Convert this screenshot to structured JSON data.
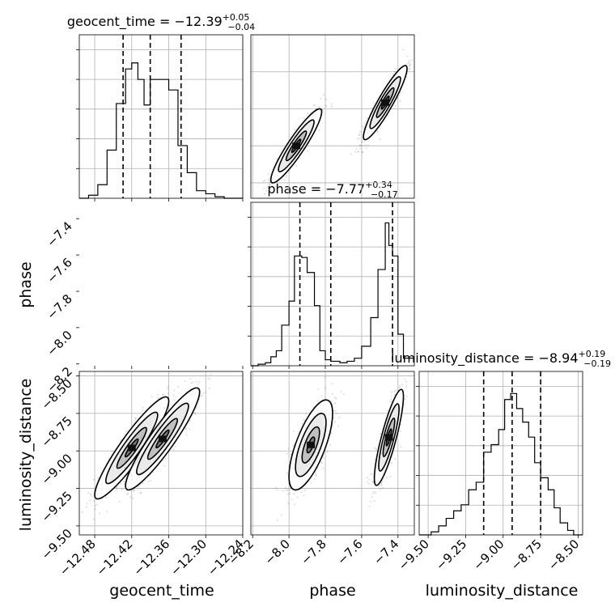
{
  "chart_data": {
    "type": "corner",
    "parameters": [
      "geocent_time",
      "phase",
      "luminosity_distance"
    ],
    "axis_labels": [
      "geocent_time",
      "phase",
      "luminosity_distance"
    ],
    "titles": [
      {
        "name": "geocent_time",
        "median": "−12.39",
        "plus": "+0.05",
        "minus": "−0.04"
      },
      {
        "name": "phase",
        "median": "−7.77",
        "plus": "+0.34",
        "minus": "−0.17"
      },
      {
        "name": "luminosity_distance",
        "median": "−8.94",
        "plus": "+0.19",
        "minus": "−0.19"
      }
    ],
    "ranges": [
      [
        -12.505,
        -12.24
      ],
      [
        -8.21,
        -7.31
      ],
      [
        -9.56,
        -8.47
      ]
    ],
    "ticks": [
      {
        "values": [
          -12.48,
          -12.42,
          -12.36,
          -12.3,
          -12.24
        ],
        "labels": [
          "−12.48",
          "−12.42",
          "−12.36",
          "−12.30",
          "−12.24"
        ]
      },
      {
        "values": [
          -8.2,
          -8.0,
          -7.8,
          -7.6,
          -7.4
        ],
        "labels": [
          "−8.2",
          "−8.0",
          "−7.8",
          "−7.6",
          "−7.4"
        ]
      },
      {
        "values": [
          -9.5,
          -9.25,
          -9.0,
          -8.75,
          -8.5
        ],
        "labels": [
          "−9.50",
          "−9.25",
          "−9.00",
          "−8.75",
          "−8.50"
        ]
      }
    ],
    "quantiles": [
      [
        -12.434,
        -12.39,
        -12.34
      ],
      [
        -7.94,
        -7.77,
        -7.43
      ],
      [
        -9.13,
        -8.94,
        -8.75
      ]
    ],
    "histograms": [
      {
        "bin_edges": [
          -12.505,
          -12.49,
          -12.475,
          -12.46,
          -12.445,
          -12.43,
          -12.42,
          -12.41,
          -12.4,
          -12.39,
          -12.375,
          -12.36,
          -12.345,
          -12.33,
          -12.315,
          -12.3,
          -12.285,
          -12.27,
          -12.24
        ],
        "counts": [
          0.0,
          0.02,
          0.09,
          0.32,
          0.63,
          0.86,
          0.9,
          0.79,
          0.62,
          0.79,
          0.79,
          0.72,
          0.35,
          0.17,
          0.05,
          0.03,
          0.01,
          0.0
        ]
      },
      {
        "bin_edges": [
          -8.21,
          -8.17,
          -8.13,
          -8.1,
          -8.07,
          -8.04,
          -8.0,
          -7.97,
          -7.93,
          -7.9,
          -7.86,
          -7.83,
          -7.8,
          -7.77,
          -7.72,
          -7.68,
          -7.64,
          -7.6,
          -7.55,
          -7.51,
          -7.47,
          -7.45,
          -7.43,
          -7.4,
          -7.37,
          -7.31
        ],
        "counts": [
          0.0,
          0.01,
          0.02,
          0.06,
          0.1,
          0.27,
          0.43,
          0.73,
          0.72,
          0.62,
          0.4,
          0.1,
          0.04,
          0.03,
          0.02,
          0.03,
          0.05,
          0.13,
          0.32,
          0.64,
          0.95,
          0.8,
          0.73,
          0.21,
          0.05
        ]
      },
      {
        "bin_edges": [
          -9.56,
          -9.48,
          -9.43,
          -9.38,
          -9.33,
          -9.28,
          -9.23,
          -9.18,
          -9.13,
          -9.08,
          -9.03,
          -8.99,
          -8.95,
          -8.91,
          -8.87,
          -8.83,
          -8.79,
          -8.75,
          -8.7,
          -8.66,
          -8.62,
          -8.57,
          -8.53,
          -8.47
        ],
        "counts": [
          0.0,
          0.02,
          0.06,
          0.11,
          0.16,
          0.2,
          0.3,
          0.35,
          0.55,
          0.6,
          0.7,
          0.9,
          0.94,
          0.84,
          0.75,
          0.65,
          0.48,
          0.38,
          0.3,
          0.18,
          0.08,
          0.03,
          0.0
        ]
      }
    ],
    "scatter_clusters": [
      {
        "x": 1,
        "y": 0,
        "modes": [
          {
            "mx": -7.96,
            "my": -12.42,
            "sx": 0.07,
            "sy": 0.03,
            "rho": 0.92
          },
          {
            "mx": -7.47,
            "my": -12.35,
            "sx": 0.06,
            "sy": 0.03,
            "rho": 0.92
          }
        ]
      },
      {
        "x": 0,
        "y": 2,
        "modes": [
          {
            "mx": -12.42,
            "my": -8.98,
            "sx": 0.03,
            "sy": 0.17,
            "rho": 0.92
          },
          {
            "mx": -12.37,
            "my": -8.92,
            "sx": 0.03,
            "sy": 0.17,
            "rho": 0.92
          }
        ]
      },
      {
        "x": 1,
        "y": 2,
        "modes": [
          {
            "mx": -7.88,
            "my": -8.96,
            "sx": 0.06,
            "sy": 0.15,
            "rho": 0.7
          },
          {
            "mx": -7.45,
            "my": -8.91,
            "sx": 0.04,
            "sy": 0.16,
            "rho": 0.85
          }
        ]
      }
    ],
    "grid": true
  }
}
